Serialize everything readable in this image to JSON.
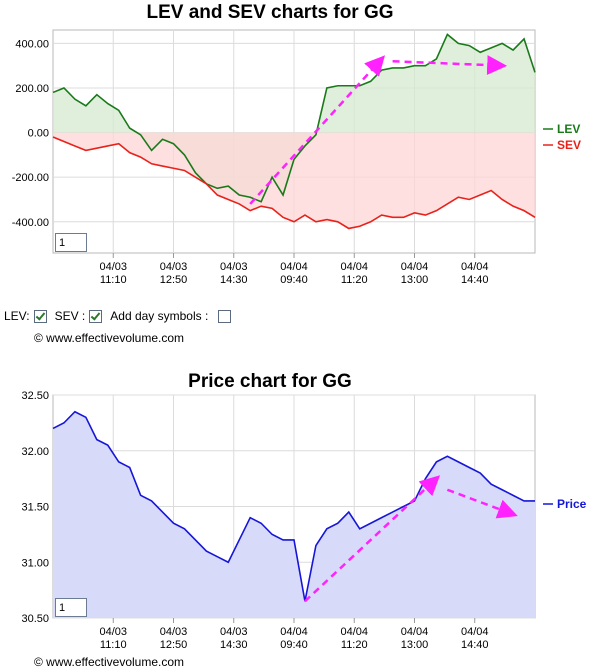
{
  "chart_data": [
    {
      "type": "line",
      "title": "LEV and SEV charts for GG",
      "x_labels": [
        {
          "date": "04/03",
          "time": "11:10"
        },
        {
          "date": "04/03",
          "time": "12:50"
        },
        {
          "date": "04/03",
          "time": "14:30"
        },
        {
          "date": "04/04",
          "time": "09:40"
        },
        {
          "date": "04/04",
          "time": "11:20"
        },
        {
          "date": "04/04",
          "time": "13:00"
        },
        {
          "date": "04/04",
          "time": "14:40"
        }
      ],
      "y_ticks": [
        "400.00",
        "200.00",
        "0.00",
        "-200.00",
        "-400.00"
      ],
      "ylim": [
        -540,
        460
      ],
      "series": [
        {
          "name": "LEV",
          "color": "#1a7a1a",
          "values": [
            180,
            200,
            150,
            120,
            170,
            130,
            100,
            20,
            -10,
            -80,
            -30,
            -50,
            -100,
            -180,
            -230,
            -250,
            -240,
            -280,
            -290,
            -310,
            -200,
            -280,
            -120,
            -60,
            -10,
            200,
            210,
            210,
            210,
            230,
            280,
            290,
            290,
            300,
            300,
            330,
            440,
            400,
            390,
            360,
            380,
            400,
            370,
            420,
            270
          ]
        },
        {
          "name": "SEV",
          "color": "#e8221a",
          "values": [
            -20,
            -40,
            -60,
            -80,
            -70,
            -60,
            -50,
            -90,
            -110,
            -140,
            -150,
            -160,
            -170,
            -200,
            -230,
            -280,
            -300,
            -320,
            -350,
            -330,
            -340,
            -380,
            -400,
            -370,
            -400,
            -390,
            -400,
            -430,
            -420,
            -400,
            -370,
            -380,
            -380,
            -360,
            -370,
            -350,
            -320,
            -290,
            -300,
            -280,
            -260,
            -300,
            -330,
            -350,
            -380
          ]
        }
      ],
      "legend": "right",
      "grid": true,
      "zoom_value": "1",
      "annotations": [
        {
          "from": [
            18,
            -320
          ],
          "to": [
            30,
            330
          ]
        },
        {
          "from": [
            31,
            320
          ],
          "to": [
            41,
            300
          ]
        }
      ]
    },
    {
      "type": "area",
      "title": "Price chart for GG",
      "x_labels": [
        {
          "date": "04/03",
          "time": "11:10"
        },
        {
          "date": "04/03",
          "time": "12:50"
        },
        {
          "date": "04/03",
          "time": "14:30"
        },
        {
          "date": "04/04",
          "time": "09:40"
        },
        {
          "date": "04/04",
          "time": "11:20"
        },
        {
          "date": "04/04",
          "time": "13:00"
        },
        {
          "date": "04/04",
          "time": "14:40"
        }
      ],
      "y_ticks": [
        "32.50",
        "32.00",
        "31.50",
        "31.00",
        "30.50"
      ],
      "ylim": [
        30.5,
        32.5
      ],
      "series": [
        {
          "name": "Price",
          "color": "#1616d8",
          "values": [
            32.2,
            32.25,
            32.35,
            32.3,
            32.1,
            32.05,
            31.9,
            31.85,
            31.6,
            31.55,
            31.45,
            31.35,
            31.3,
            31.2,
            31.1,
            31.05,
            31.0,
            31.2,
            31.4,
            31.35,
            31.25,
            31.2,
            31.2,
            30.65,
            31.15,
            31.3,
            31.35,
            31.45,
            31.3,
            31.35,
            31.4,
            31.45,
            31.5,
            31.55,
            31.75,
            31.9,
            31.95,
            31.9,
            31.85,
            31.8,
            31.7,
            31.65,
            31.6,
            31.55,
            31.55
          ]
        }
      ],
      "legend": "right",
      "grid": true,
      "zoom_value": "1",
      "annotations": [
        {
          "from": [
            23,
            30.65
          ],
          "to": [
            35,
            31.75
          ]
        },
        {
          "from": [
            36,
            31.65
          ],
          "to": [
            42,
            31.43
          ]
        }
      ]
    }
  ],
  "controls": {
    "lev_label": "LEV:",
    "sev_label": "SEV :",
    "day_symbols_label": "Add day symbols :",
    "lev_checked": true,
    "sev_checked": true,
    "day_symbols_checked": false
  },
  "copyright": "© www.effectivevolume.com",
  "colors": {
    "lev_fill": "#d5ead0",
    "sev_fill": "#ffd5d5",
    "overlap_fill": "#d8c3ad",
    "price_fill": "#d8dafa",
    "arrow": "#ff22ff",
    "grid": "#dcdcdc"
  }
}
